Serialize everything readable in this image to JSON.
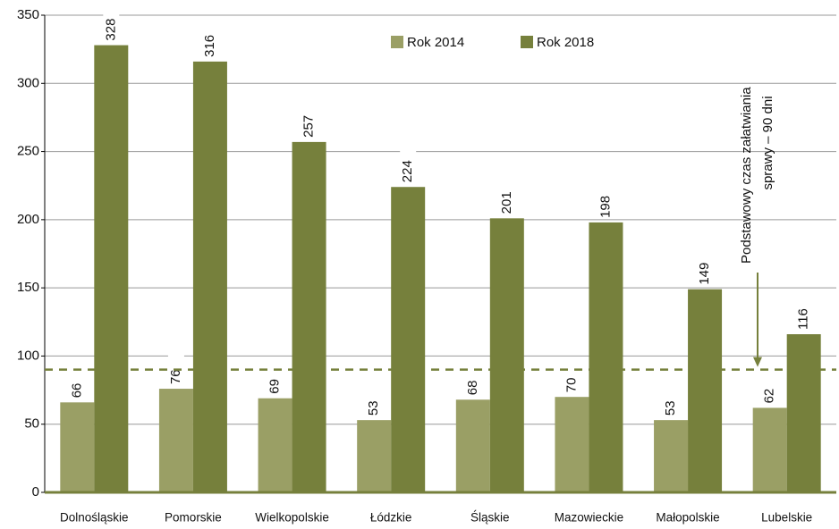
{
  "chart_data": {
    "type": "bar",
    "categories": [
      "Dolnośląskie",
      "Pomorskie",
      "Wielkopolskie",
      "Łódzkie",
      "Śląskie",
      "Mazowieckie",
      "Małopolskie",
      "Lubelskie"
    ],
    "series": [
      {
        "name": "Rok 2014",
        "color": "#9a9f65",
        "values": [
          66,
          76,
          69,
          53,
          68,
          70,
          53,
          62
        ]
      },
      {
        "name": "Rok 2018",
        "color": "#76803c",
        "values": [
          328,
          316,
          257,
          224,
          201,
          198,
          149,
          116
        ]
      }
    ],
    "ylim": [
      0,
      350
    ],
    "yticks": [
      0,
      50,
      100,
      150,
      200,
      250,
      300,
      350
    ],
    "grid": true,
    "reference_line": {
      "value": 90,
      "color": "#76803c",
      "label": [
        "Podstawowy czas załatwiania",
        "sprawy – 90 dni"
      ]
    }
  }
}
